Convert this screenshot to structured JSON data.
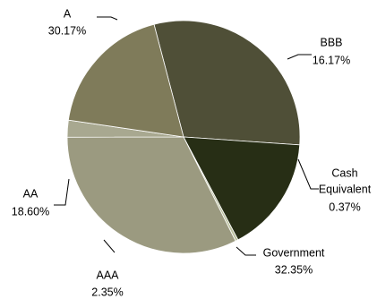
{
  "chart_data": {
    "type": "pie",
    "slices": [
      {
        "label": "A",
        "value_label": "30.17%",
        "value": 30.17,
        "color": "#4f4f37"
      },
      {
        "label": "BBB",
        "value_label": "16.17%",
        "value": 16.17,
        "color": "#272e15"
      },
      {
        "label": "Cash Equivalent",
        "label_lines": [
          "Cash",
          "Equivalent"
        ],
        "value_label": "0.37%",
        "value": 0.37,
        "color": "#bcc29f"
      },
      {
        "label": "Government",
        "value_label": "32.35%",
        "value": 32.35,
        "color": "#9b9a80"
      },
      {
        "label": "AAA",
        "value_label": "2.35%",
        "value": 2.35,
        "color": "#a8a890"
      },
      {
        "label": "AA",
        "value_label": "18.60%",
        "value": 18.6,
        "color": "#7f7b5a"
      }
    ]
  }
}
